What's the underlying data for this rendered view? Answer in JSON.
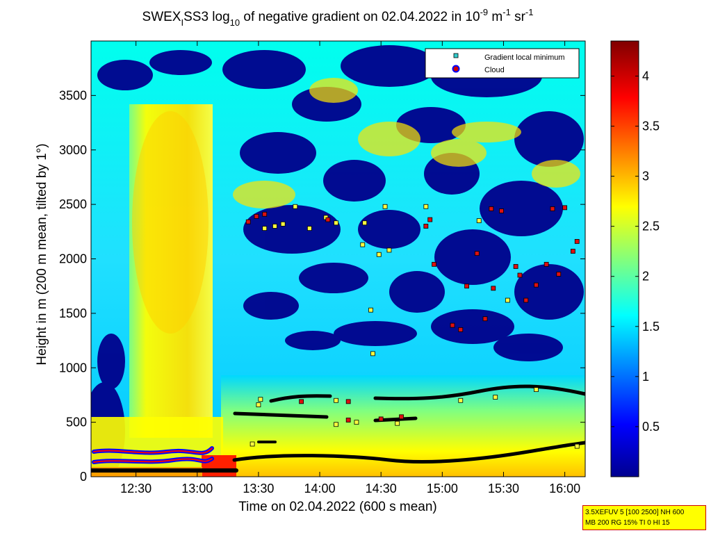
{
  "chart_data": {
    "type": "heatmap",
    "title": {
      "prefix": "SWEX",
      "sub1": "I",
      "mid": "SS3 log",
      "sub2": "10",
      "suffix": " of negative gradient on 02.04.2022 in 10",
      "sup1": "-9",
      "unit1": " m",
      "sup2": "-1",
      "unit2": " sr",
      "sup3": "-1"
    },
    "xlabel": "Time on 02.04.2022 (600 s mean)",
    "ylabel": "Height in m (200 m mean, tilted by 1°)",
    "x_ticks": [
      "12:30",
      "13:00",
      "13:30",
      "14:00",
      "14:30",
      "15:00",
      "15:30",
      "16:00"
    ],
    "x_tick_minutes": [
      750,
      780,
      810,
      840,
      870,
      900,
      930,
      960
    ],
    "xlim_minutes": [
      728,
      970
    ],
    "y_ticks": [
      0,
      500,
      1000,
      1500,
      2000,
      2500,
      3000,
      3500
    ],
    "ylim": [
      0,
      4000
    ],
    "colorbar": {
      "ticks": [
        "0.5",
        "1",
        "1.5",
        "2",
        "2.5",
        "3",
        "3.5",
        "4"
      ],
      "values": [
        0.5,
        1,
        1.5,
        2,
        2.5,
        3,
        3.5,
        4
      ],
      "range": [
        0,
        4.35
      ]
    },
    "legend": {
      "position": "top-right",
      "entries": [
        {
          "label": "Gradient local minimum",
          "marker": "square",
          "color": "#33cccc"
        },
        {
          "label": "Cloud",
          "marker": "circle",
          "color": "#cc0000"
        }
      ]
    },
    "series": [
      {
        "name": "Gradient local minimum",
        "points": [
          [
            813,
            2280
          ],
          [
            818,
            2300
          ],
          [
            822,
            2320
          ],
          [
            828,
            2480
          ],
          [
            835,
            2280
          ],
          [
            843,
            2380
          ],
          [
            848,
            2330
          ],
          [
            861,
            2130
          ],
          [
            862,
            2330
          ],
          [
            865,
            1530
          ],
          [
            866,
            1130
          ],
          [
            869,
            2040
          ],
          [
            872,
            2480
          ],
          [
            874,
            2080
          ],
          [
            892,
            2480
          ],
          [
            918,
            2350
          ],
          [
            932,
            1620
          ],
          [
            807,
            300
          ],
          [
            810,
            660
          ],
          [
            811,
            710
          ],
          [
            848,
            700
          ],
          [
            848,
            480
          ],
          [
            858,
            500
          ],
          [
            878,
            490
          ],
          [
            909,
            700
          ],
          [
            926,
            730
          ],
          [
            946,
            800
          ],
          [
            966,
            280
          ]
        ]
      },
      {
        "name": "Cloud",
        "points": [
          [
            805,
            2340
          ],
          [
            809,
            2390
          ],
          [
            813,
            2410
          ],
          [
            831,
            690
          ],
          [
            844,
            2360
          ],
          [
            854,
            690
          ],
          [
            854,
            520
          ],
          [
            870,
            530
          ],
          [
            880,
            550
          ],
          [
            892,
            2300
          ],
          [
            894,
            2360
          ],
          [
            896,
            1950
          ],
          [
            905,
            1390
          ],
          [
            909,
            1350
          ],
          [
            912,
            1750
          ],
          [
            917,
            2050
          ],
          [
            921,
            1450
          ],
          [
            924,
            2460
          ],
          [
            929,
            2440
          ],
          [
            941,
            1620
          ],
          [
            951,
            1950
          ],
          [
            954,
            2460
          ],
          [
            957,
            1860
          ],
          [
            964,
            2070
          ],
          [
            966,
            2160
          ],
          [
            960,
            2470
          ],
          [
            946,
            1760
          ],
          [
            938,
            1850
          ],
          [
            925,
            1730
          ],
          [
            936,
            1930
          ]
        ]
      }
    ]
  },
  "info_box": {
    "line1": "3.5XEFUV 5 [100 2500] NH 600",
    "line2": "MB 200 RG 15% TI 0 HI 15"
  }
}
